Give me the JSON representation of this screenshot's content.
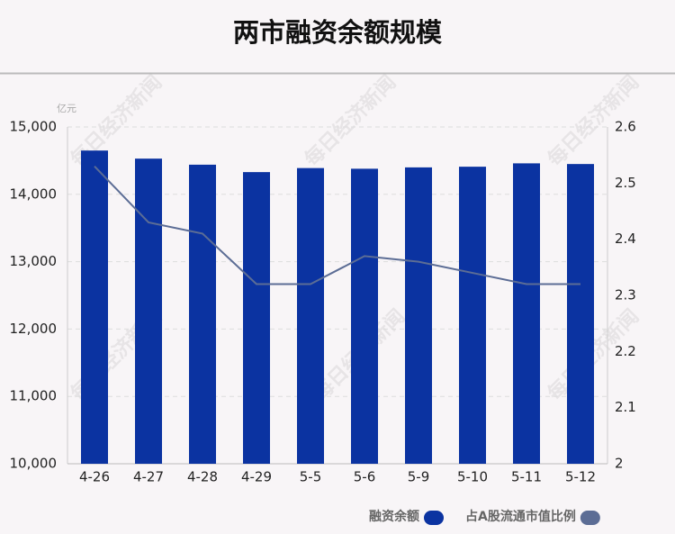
{
  "chart_data": {
    "type": "bar_line",
    "title": "两市融资余额规模",
    "y_unit": "亿元",
    "watermark": "每日经济新闻",
    "categories": [
      "4-26",
      "4-27",
      "4-28",
      "4-29",
      "5-5",
      "5-6",
      "5-9",
      "5-10",
      "5-11",
      "5-12"
    ],
    "series": [
      {
        "name": "融资余额",
        "color": "#0b33a1",
        "type": "bar",
        "values": [
          14650,
          14530,
          14440,
          14330,
          14390,
          14380,
          14400,
          14410,
          14460,
          14450
        ]
      },
      {
        "name": "占A股流通市值比例",
        "color": "#5c6d95",
        "type": "line",
        "axis": "y2",
        "values": [
          2.53,
          2.43,
          2.41,
          2.32,
          2.32,
          2.37,
          2.36,
          2.34,
          2.32,
          2.32
        ]
      }
    ],
    "ylim": [
      10000,
      15000
    ],
    "yticks": [
      {
        "value": 10000,
        "label": "10,000"
      },
      {
        "value": 11000,
        "label": "11,000"
      },
      {
        "value": 12000,
        "label": "12,000"
      },
      {
        "value": 13000,
        "label": "13,000"
      },
      {
        "value": 14000,
        "label": "14,000"
      },
      {
        "value": 15000,
        "label": "15,000"
      }
    ],
    "y2lim": [
      2,
      2.6
    ],
    "y2ticks": [
      2,
      2.1,
      2.2,
      2.3,
      2.4,
      2.5,
      2.6
    ],
    "grid": true
  }
}
